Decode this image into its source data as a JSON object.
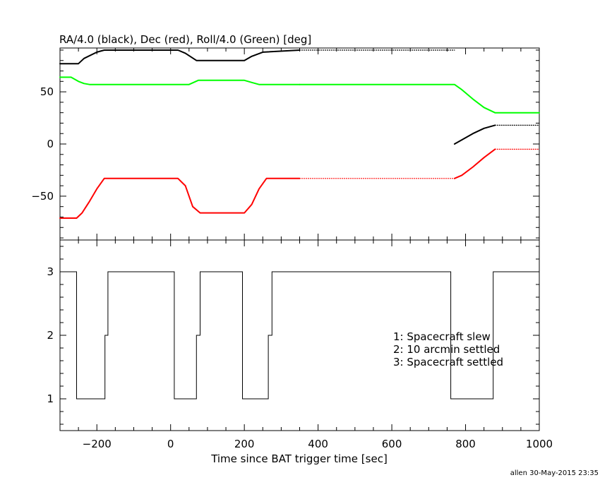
{
  "footer": {
    "stamp": "allen 30-May-2015 23:35"
  },
  "chart_data": [
    {
      "type": "line",
      "title": "RA/4.0 (black), Dec (red), Roll/4.0 (Green) [deg]",
      "xlabel": "",
      "ylabel": "",
      "xlim": [
        -300,
        1000
      ],
      "ylim": [
        -92,
        92
      ],
      "y_ticks": [
        -50,
        0,
        50
      ],
      "grid": false,
      "series": [
        {
          "name": "RA/4.0",
          "color": "#000000",
          "segments": [
            {
              "style": "solid",
              "x": [
                -300,
                -250,
                -235,
                -200,
                -180,
                20,
                40,
                70,
                200,
                220,
                250,
                350
              ],
              "y": [
                77,
                77,
                82,
                88,
                90,
                90,
                87,
                80,
                80,
                84,
                88,
                90
              ]
            },
            {
              "style": "dotted",
              "x": [
                350,
                770
              ],
              "y": [
                90,
                90
              ]
            },
            {
              "style": "solid",
              "x": [
                770,
                790,
                820,
                850,
                880
              ],
              "y": [
                0,
                4,
                10,
                15,
                18
              ]
            },
            {
              "style": "dotted",
              "x": [
                880,
                1000
              ],
              "y": [
                18,
                18
              ]
            }
          ]
        },
        {
          "name": "Dec",
          "color": "#ff0000",
          "segments": [
            {
              "style": "solid",
              "x": [
                -300,
                -255,
                -240,
                -220,
                -200,
                -180,
                20,
                40,
                60,
                80,
                200,
                220,
                240,
                260,
                350
              ],
              "y": [
                -71,
                -71,
                -66,
                -55,
                -43,
                -33,
                -33,
                -40,
                -60,
                -66,
                -66,
                -58,
                -43,
                -33,
                -33
              ]
            },
            {
              "style": "dotted",
              "x": [
                350,
                770
              ],
              "y": [
                -33,
                -33
              ]
            },
            {
              "style": "solid",
              "x": [
                770,
                790,
                820,
                850,
                880
              ],
              "y": [
                -33,
                -30,
                -22,
                -13,
                -5
              ]
            },
            {
              "style": "dotted",
              "x": [
                880,
                1000
              ],
              "y": [
                -5,
                -5
              ]
            }
          ]
        },
        {
          "name": "Roll/4.0",
          "color": "#00ff00",
          "segments": [
            {
              "style": "solid",
              "x": [
                -300,
                -270,
                -250,
                -235,
                -220,
                -200,
                50,
                75,
                200,
                220,
                240,
                350
              ],
              "y": [
                64,
                64,
                60,
                58,
                57,
                57,
                57,
                61,
                61,
                59,
                57,
                57
              ]
            },
            {
              "style": "solid",
              "x": [
                350,
                770,
                790,
                820,
                850,
                880,
                1000
              ],
              "y": [
                57,
                57,
                52,
                43,
                35,
                30,
                30
              ]
            }
          ]
        }
      ]
    },
    {
      "type": "line",
      "title": "",
      "xlabel": "Time since BAT trigger time [sec]",
      "ylabel": "",
      "xlim": [
        -300,
        1000
      ],
      "ylim": [
        0.5,
        3.5
      ],
      "x_ticks": [
        -200,
        0,
        200,
        400,
        600,
        800,
        1000
      ],
      "y_ticks": [
        1,
        2,
        3
      ],
      "grid": false,
      "series": [
        {
          "name": "",
          "color": "#000000",
          "step": true,
          "x": [
            -300,
            -255,
            -255,
            -178,
            -178,
            -170,
            -170,
            10,
            10,
            70,
            70,
            80,
            80,
            195,
            195,
            265,
            265,
            275,
            275,
            760,
            760,
            875,
            875,
            1000
          ],
          "y": [
            3,
            3,
            1,
            1,
            2,
            2,
            3,
            3,
            1,
            1,
            2,
            2,
            3,
            3,
            1,
            1,
            2,
            2,
            3,
            3,
            1,
            1,
            3,
            3
          ]
        }
      ],
      "annotations": [
        "1: Spacecraft slew",
        "2: 10 arcmin settled",
        "3: Spacecraft settled"
      ]
    }
  ]
}
